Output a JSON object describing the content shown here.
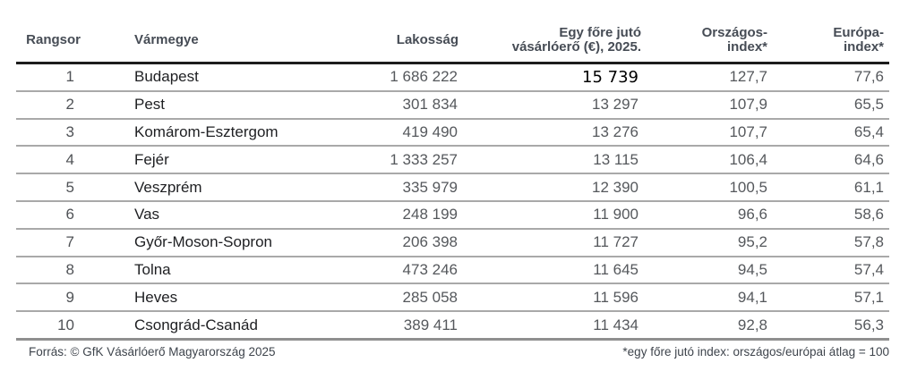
{
  "table": {
    "header": {
      "rank": "Rangsor",
      "county": "Vármegye",
      "population": "Lakosság",
      "ppp_line1": "Egy főre jutó",
      "ppp_line2": "vásárlóerő (€), 2025.",
      "national_line1": "Országos-",
      "national_line2": "index*",
      "europe_line1": "Európa-",
      "europe_line2": "index*"
    },
    "column_keys": [
      "rank",
      "county",
      "population",
      "ppp",
      "national",
      "europe"
    ],
    "rows": [
      {
        "rank": "1",
        "county": "Budapest",
        "population": "1 686 222",
        "ppp": "15 739",
        "national": "127,7",
        "europe": "77,6"
      },
      {
        "rank": "2",
        "county": "Pest",
        "population": "301 834",
        "ppp": "13 297",
        "national": "107,9",
        "europe": "65,5"
      },
      {
        "rank": "3",
        "county": "Komárom-Esztergom",
        "population": "419 490",
        "ppp": "13 276",
        "national": "107,7",
        "europe": "65,4"
      },
      {
        "rank": "4",
        "county": "Fejér",
        "population": "1 333 257",
        "ppp": "13 115",
        "national": "106,4",
        "europe": "64,6"
      },
      {
        "rank": "5",
        "county": "Veszprém",
        "population": "335 979",
        "ppp": "12 390",
        "national": "100,5",
        "europe": "61,1"
      },
      {
        "rank": "6",
        "county": "Vas",
        "population": "248 199",
        "ppp": "11 900",
        "national": "96,6",
        "europe": "58,6"
      },
      {
        "rank": "7",
        "county": "Győr-Moson-Sopron",
        "population": "206 398",
        "ppp": "11 727",
        "national": "95,2",
        "europe": "57,8"
      },
      {
        "rank": "8",
        "county": "Tolna",
        "population": "473 246",
        "ppp": "11 645",
        "national": "94,5",
        "europe": "57,4"
      },
      {
        "rank": "9",
        "county": "Heves",
        "population": "285 058",
        "ppp": "11 596",
        "national": "94,1",
        "europe": "57,1"
      },
      {
        "rank": "10",
        "county": "Csongrád-Csanád",
        "population": "389 411",
        "ppp": "11 434",
        "national": "92,8",
        "europe": "56,3"
      }
    ],
    "source": "Forrás: © GfK Vásárlóerő Magyarország 2025",
    "footnote": "*egy főre jutó index: országos/európai átlag = 100"
  },
  "chart_data": {
    "type": "table",
    "title": "",
    "columns": [
      "Rangsor",
      "Vármegye",
      "Lakosság",
      "Egy főre jutó vásárlóerő (€), 2025.",
      "Országos-index*",
      "Európa-index*"
    ],
    "rows": [
      [
        1,
        "Budapest",
        "1 686 222",
        "15 739",
        "127,7",
        "77,6"
      ],
      [
        2,
        "Pest",
        "301 834",
        "13 297",
        "107,9",
        "65,5"
      ],
      [
        3,
        "Komárom-Esztergom",
        "419 490",
        "13 276",
        "107,7",
        "65,4"
      ],
      [
        4,
        "Fejér",
        "1 333 257",
        "13 115",
        "106,4",
        "64,6"
      ],
      [
        5,
        "Veszprém",
        "335 979",
        "12 390",
        "100,5",
        "61,1"
      ],
      [
        6,
        "Vas",
        "248 199",
        "11 900",
        "96,6",
        "58,6"
      ],
      [
        7,
        "Győr-Moson-Sopron",
        "206 398",
        "11 727",
        "95,2",
        "57,8"
      ],
      [
        8,
        "Tolna",
        "473 246",
        "11 645",
        "94,5",
        "57,4"
      ],
      [
        9,
        "Heves",
        "285 058",
        "11 596",
        "94,1",
        "57,1"
      ],
      [
        10,
        "Csongrád-Csanád",
        "389 411",
        "11 434",
        "92,8",
        "56,3"
      ]
    ],
    "source": "Forrás: © GfK Vásárlóerő Magyarország 2025",
    "footnote": "*egy főre jutó index: országos/európai átlag = 100"
  },
  "colors": {
    "background": "#ffffff",
    "header_text": "#464c55",
    "county_text": "#1e1f22",
    "number_text": "#55585c",
    "highlight_value_text": "#000000",
    "header_rule": "#1c1c1c",
    "row_rule": "#a9a9a9",
    "bottom_rule": "#8f8f8f"
  }
}
